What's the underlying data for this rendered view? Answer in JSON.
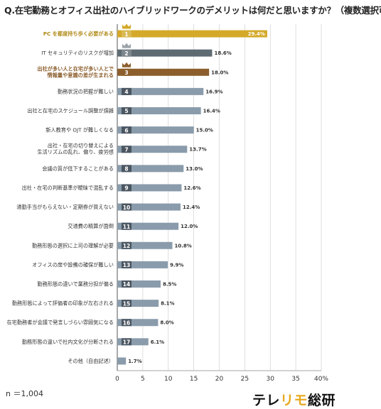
{
  "title": "Q.在宅勤務とオフィス出社のハイブリッドワークのデメリットは何だと思いますか？（複数選択可）",
  "sample_size": "n ＝1,004",
  "brand": {
    "part1": "テレ",
    "part2": "リモ",
    "part3": "総研"
  },
  "colors": {
    "gold": "#d4a92a",
    "silver": "#5f6b73",
    "bronze": "#8b5e2c",
    "default_bar": "#8a9cab",
    "rank_gold_bg": "#d9b954",
    "rank_silver_bg": "#7c868c",
    "rank_bronze_bg": "#8b5e2c",
    "rank_default_bg": "#4b5661"
  },
  "chart_data": {
    "type": "bar",
    "orientation": "horizontal",
    "title": "Q.在宅勤務とオフィス出社のハイブリッドワークのデメリットは何だと思いますか？（複数選択可）",
    "categories": [
      "PC を都度持ち歩く必要がある",
      "IT セキュリティのリスクが増加",
      "出社が多い人と在宅が多い人とで\n情報量や意識の差が生まれる",
      "勤務状況の把握が難しい",
      "出社と在宅のスケジュール調整が煩雑",
      "新人教育や OJT が難しくなる",
      "出社・在宅の切り替えによる\n生活リズムの乱れ、偏り、疲労感",
      "会議の質が低下することがある",
      "出社・在宅の判断基準が曖昧で混乱する",
      "通勤手当がもらえない・定期券が買えない",
      "交通費の精算が面倒",
      "勤務形態の選択に上司の理解が必要",
      "オフィスの席や設備の確保が難しい",
      "勤務形態の違いで業務分担が偏る",
      "勤務形態によって評価者の印象が左右される",
      "在宅勤務者が会議で発言しづらい雰囲気になる",
      "勤務形態の違いで社内文化が分断される",
      "その他（自由記述）"
    ],
    "ranks": [
      "1",
      "2",
      "3",
      "4",
      "5",
      "6",
      "7",
      "8",
      "9",
      "10",
      "11",
      "12",
      "13",
      "14",
      "15",
      "16",
      "17",
      ""
    ],
    "values": [
      29.4,
      18.6,
      18.0,
      16.9,
      16.4,
      15.0,
      13.7,
      13.0,
      12.6,
      12.4,
      12.0,
      10.8,
      9.9,
      8.5,
      8.1,
      8.0,
      6.1,
      1.7
    ],
    "value_labels": [
      "29.4%",
      "18.6%",
      "18.0%",
      "16.9%",
      "16.4%",
      "15.0%",
      "13.7%",
      "13.0%",
      "12.6%",
      "12.4%",
      "12.0%",
      "10.8%",
      "9.9%",
      "8.5%",
      "8.1%",
      "8.0%",
      "6.1%",
      "1.7%"
    ],
    "xlim": [
      0,
      40
    ],
    "x_ticks": [
      "0",
      "5",
      "10",
      "15",
      "20",
      "25",
      "30",
      "35",
      "40%"
    ],
    "x_tick_values": [
      0,
      5,
      10,
      15,
      20,
      25,
      30,
      35,
      40
    ],
    "grid": true
  }
}
